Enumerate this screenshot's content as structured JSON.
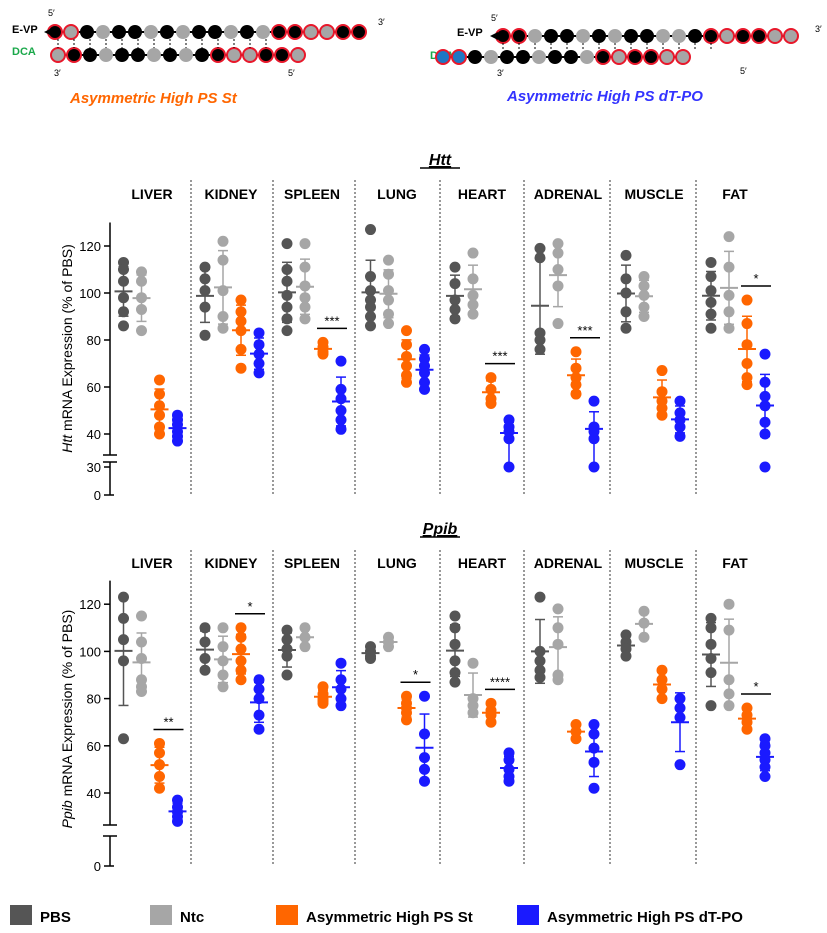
{
  "diagrams": [
    {
      "strand_labels": [
        "E-VP",
        "DCA"
      ],
      "caption": "Asymmetric High PS St",
      "caption_color": "#ff6600",
      "primes": [
        "5′",
        "3′",
        "3′",
        "5′"
      ]
    },
    {
      "strand_labels": [
        "E-VP",
        "DCA"
      ],
      "caption": "Asymmetric High PS dT-PO",
      "caption_color": "#3333ff",
      "primes": [
        "5′",
        "3′",
        "3′",
        "5′"
      ]
    }
  ],
  "colors": {
    "PBS": "#555555",
    "Ntc": "#a6a6a6",
    "Asymmetric High PS St": "#ff6600",
    "Asymmetric High PS dT-PO": "#1a1aff",
    "backbone_ps": "#e8182b",
    "dca_blue": "#1f77c4"
  },
  "chart_data": [
    {
      "type": "scatter",
      "title": "Htt",
      "ylabel_italic": "Htt",
      "ylabel": "mRNA Expression (% of PBS)",
      "yticks": [
        0,
        30,
        40,
        60,
        80,
        100,
        120
      ],
      "y_axis_break": [
        30,
        37
      ],
      "categories": [
        "LIVER",
        "KIDNEY",
        "SPLEEN",
        "LUNG",
        "HEART",
        "ADRENAL",
        "MUSCLE",
        "FAT"
      ],
      "series": [
        {
          "name": "PBS",
          "points": [
            [
              113,
              110,
              105,
              98,
              92,
              86
            ],
            [
              111,
              106,
              101,
              94,
              82
            ],
            [
              121,
              110,
              105,
              99,
              94,
              89,
              84
            ],
            [
              127,
              107,
              101,
              97,
              94,
              90,
              86
            ],
            [
              111,
              104,
              97,
              93,
              89
            ],
            [
              119,
              115,
              83,
              80,
              76
            ],
            [
              116,
              106,
              100,
              92,
              85
            ],
            [
              113,
              107,
              101,
              96,
              91,
              85
            ]
          ]
        },
        {
          "name": "Ntc",
          "points": [
            [
              109,
              105,
              98,
              93,
              84
            ],
            [
              122,
              114,
              101,
              90,
              85
            ],
            [
              121,
              111,
              103,
              98,
              94,
              89
            ],
            [
              114,
              108,
              101,
              97,
              91,
              87
            ],
            [
              117,
              106,
              99,
              95,
              91
            ],
            [
              121,
              117,
              110,
              103,
              87
            ],
            [
              107,
              103,
              99,
              94,
              90
            ],
            [
              124,
              111,
              99,
              92,
              85
            ]
          ]
        },
        {
          "name": "Asymmetric High PS St",
          "points": [
            [
              63,
              57,
              52,
              48,
              43,
              40
            ],
            [
              97,
              92,
              88,
              84,
              76,
              68
            ],
            [
              79,
              77,
              75,
              74
            ],
            [
              84,
              78,
              73,
              69,
              65,
              62
            ],
            [
              64,
              59,
              55,
              53
            ],
            [
              75,
              68,
              64,
              61,
              57
            ],
            [
              67,
              58,
              54,
              51,
              48
            ],
            [
              97,
              87,
              78,
              70,
              64,
              61
            ]
          ]
        },
        {
          "name": "Asymmetric High PS dT-PO",
          "points": [
            [
              48,
              46,
              44,
              41,
              39,
              37
            ],
            [
              83,
              78,
              74,
              70,
              66
            ],
            [
              71,
              59,
              55,
              50,
              46,
              42
            ],
            [
              76,
              72,
              69,
              66,
              62,
              59
            ],
            [
              46,
              43,
              41,
              38,
              34
            ],
            [
              54,
              43,
              41,
              38,
              35
            ],
            [
              54,
              49,
              46,
              43,
              39
            ],
            [
              74,
              62,
              56,
              52,
              45,
              40,
              36
            ]
          ]
        }
      ],
      "significance": [
        {
          "category": "SPLEEN",
          "label": "***"
        },
        {
          "category": "HEART",
          "label": "***"
        },
        {
          "category": "ADRENAL",
          "label": "***"
        },
        {
          "category": "FAT",
          "label": "*"
        }
      ]
    },
    {
      "type": "scatter",
      "title": "Ppib",
      "ylabel_italic": "Ppib",
      "ylabel": "mRNA Expression (% of PBS)",
      "yticks": [
        0,
        40,
        60,
        80,
        100,
        120
      ],
      "y_axis_break": [
        14,
        25
      ],
      "categories": [
        "LIVER",
        "KIDNEY",
        "SPLEEN",
        "LUNG",
        "HEART",
        "ADRENAL",
        "MUSCLE",
        "FAT"
      ],
      "series": [
        {
          "name": "PBS",
          "points": [
            [
              123,
              114,
              105,
              96,
              63
            ],
            [
              110,
              104,
              97,
              92
            ],
            [
              109,
              105,
              101,
              98,
              90
            ],
            [
              102,
              100,
              98,
              97
            ],
            [
              115,
              110,
              103,
              96,
              91,
              87
            ],
            [
              123,
              100,
              96,
              92,
              89
            ],
            [
              107,
              104,
              101,
              98
            ],
            [
              114,
              110,
              103,
              97,
              91,
              77
            ]
          ]
        },
        {
          "name": "Ntc",
          "points": [
            [
              115,
              104,
              97,
              88,
              85,
              83
            ],
            [
              110,
              102,
              96,
              90,
              85
            ],
            [
              110,
              106,
              102
            ],
            [
              106,
              104,
              102
            ],
            [
              95,
              80,
              77,
              74
            ],
            [
              118,
              110,
              103,
              90,
              88
            ],
            [
              117,
              112,
              106
            ],
            [
              120,
              109,
              88,
              82,
              77
            ]
          ]
        },
        {
          "name": "Asymmetric High PS St",
          "points": [
            [
              61,
              57,
              52,
              47,
              42
            ],
            [
              110,
              106,
              101,
              96,
              92,
              88
            ],
            [
              85,
              82,
              80,
              79,
              78
            ],
            [
              81,
              78,
              76,
              74,
              71
            ],
            [
              78,
              75,
              73,
              70
            ],
            [
              69,
              66,
              63
            ],
            [
              92,
              88,
              84,
              80
            ],
            [
              76,
              73,
              70,
              67
            ]
          ]
        },
        {
          "name": "Asymmetric High PS dT-PO",
          "points": [
            [
              37,
              34,
              32,
              30,
              28
            ],
            [
              88,
              84,
              80,
              73,
              67
            ],
            [
              95,
              88,
              84,
              80,
              77
            ],
            [
              81,
              65,
              55,
              50,
              45
            ],
            [
              57,
              54,
              50,
              47,
              45
            ],
            [
              69,
              65,
              59,
              53,
              42
            ],
            [
              80,
              76,
              72,
              52
            ],
            [
              63,
              60,
              57,
              54,
              51,
              47
            ]
          ]
        }
      ],
      "significance": [
        {
          "category": "LIVER",
          "label": "**"
        },
        {
          "category": "KIDNEY",
          "label": "*"
        },
        {
          "category": "LUNG",
          "label": "*"
        },
        {
          "category": "HEART",
          "label": "****"
        },
        {
          "category": "FAT",
          "label": "*"
        }
      ]
    }
  ],
  "legend": [
    {
      "label": "PBS",
      "color": "#555555"
    },
    {
      "label": "Ntc",
      "color": "#a6a6a6"
    },
    {
      "label": "Asymmetric High PS St",
      "color": "#ff6600"
    },
    {
      "label": "Asymmetric High PS dT-PO",
      "color": "#1a1aff"
    }
  ]
}
